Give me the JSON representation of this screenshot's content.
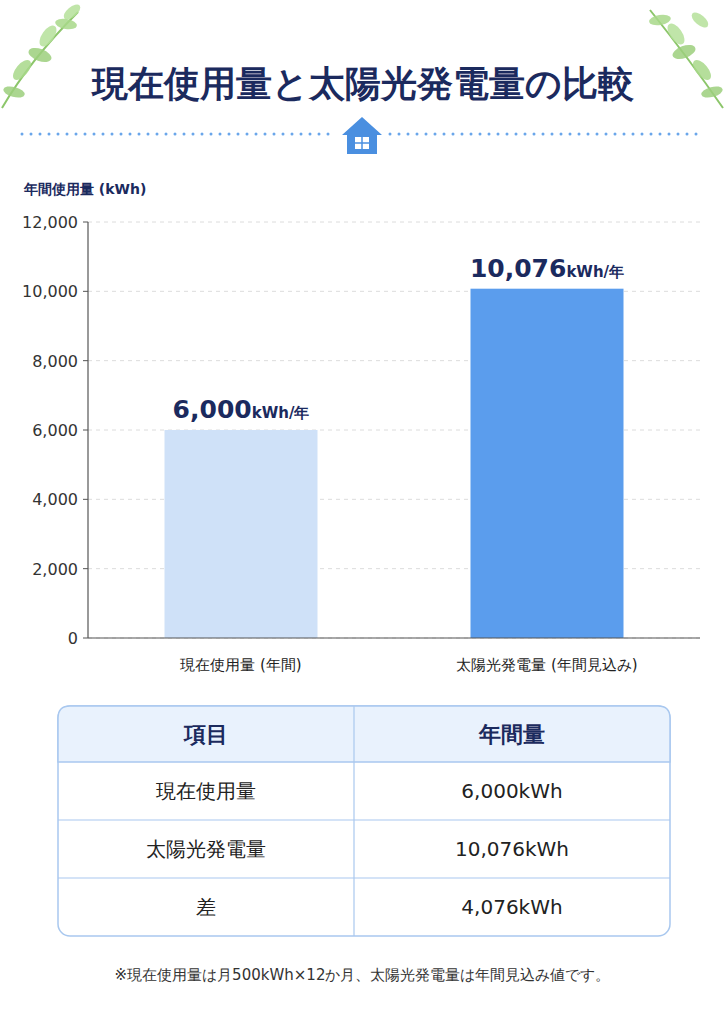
{
  "chart_data": {
    "type": "bar",
    "title": "現在使用量と太陽光発電量の比較",
    "y_label": "年間使用量 (kWh)",
    "categories": [
      "現在使用量 (年間)",
      "太陽光発電量 (年間見込み)"
    ],
    "values": [
      6000,
      10076
    ],
    "value_labels": [
      "6,000kWh/年",
      "10,076kWh/年"
    ],
    "colors": [
      "#cfe1f8",
      "#5b9ded"
    ],
    "ylim": [
      0,
      12000
    ],
    "yticks": [
      0,
      {
        "value": 2000,
        "label": "2,000"
      },
      {
        "value": 4000,
        "label": "4,000"
      },
      {
        "value": 6000,
        "label": "6,000"
      },
      {
        "value": 8000,
        "label": "8,000"
      },
      {
        "value": 10000,
        "label": "10,000"
      },
      {
        "value": 12000,
        "label": "12,000"
      }
    ],
    "grid": true,
    "data_labels": true
  },
  "table": {
    "headers": [
      "項目",
      "年間量"
    ],
    "rows": [
      [
        "現在使用量",
        "6,000kWh"
      ],
      [
        "太陽光発電量",
        "10,076kWh"
      ],
      [
        "差",
        "4,076kWh"
      ]
    ]
  },
  "footnote": "※現在使用量は月500kWh×12か月、太陽光発電量は年間見込み値です。"
}
